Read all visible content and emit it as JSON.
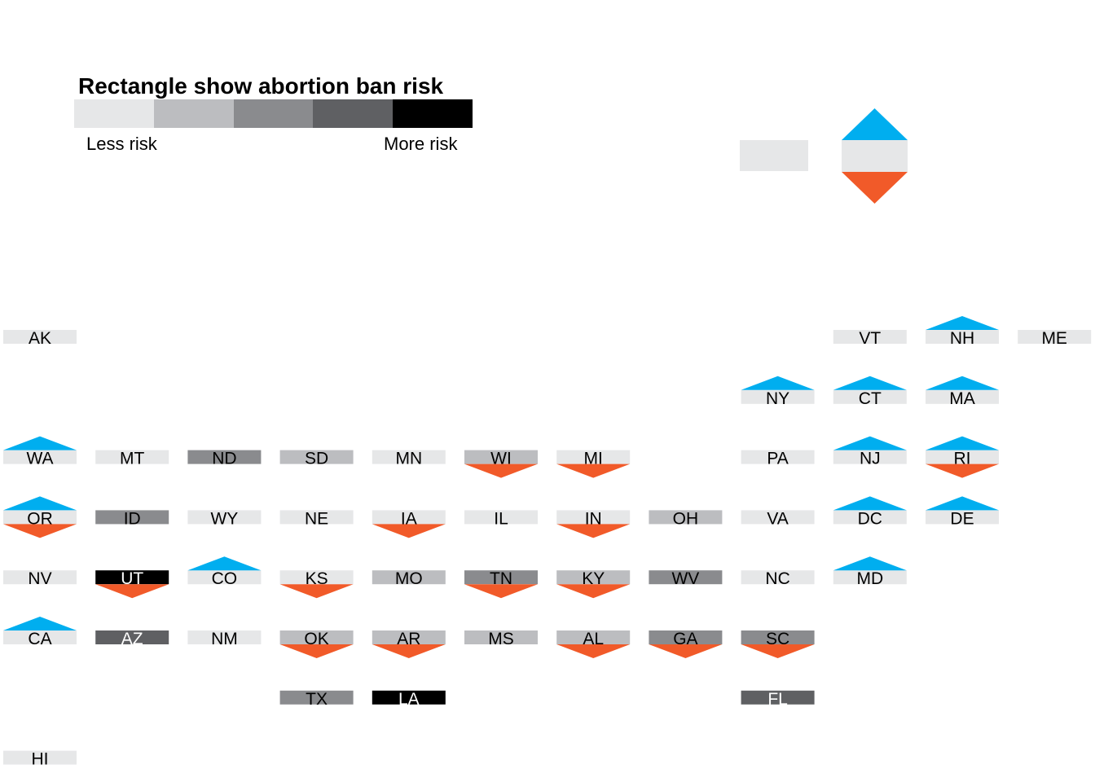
{
  "legend": {
    "title": "Rectangle show abortion ban risk",
    "less_label": "Less risk",
    "more_label": "More risk",
    "risk_colors": [
      "#e6e7e8",
      "#bcbdc0",
      "#8a8b8e",
      "#5f6063",
      "#000000"
    ]
  },
  "colors": {
    "up_triangle": "#00aeef",
    "down_triangle": "#f15a29"
  },
  "chart_data": {
    "type": "tile-map",
    "risk_scale": [
      1,
      2,
      3,
      4,
      5
    ],
    "states": [
      {
        "abbr": "AK",
        "risk": 1,
        "up": false,
        "down": false
      },
      {
        "abbr": "VT",
        "risk": 1,
        "up": false,
        "down": false
      },
      {
        "abbr": "NH",
        "risk": 1,
        "up": true,
        "down": false
      },
      {
        "abbr": "ME",
        "risk": 1,
        "up": false,
        "down": false
      },
      {
        "abbr": "NY",
        "risk": 1,
        "up": true,
        "down": false
      },
      {
        "abbr": "CT",
        "risk": 1,
        "up": true,
        "down": false
      },
      {
        "abbr": "MA",
        "risk": 1,
        "up": true,
        "down": false
      },
      {
        "abbr": "WA",
        "risk": 1,
        "up": true,
        "down": false
      },
      {
        "abbr": "MT",
        "risk": 1,
        "up": false,
        "down": false
      },
      {
        "abbr": "ND",
        "risk": 3,
        "up": false,
        "down": false
      },
      {
        "abbr": "SD",
        "risk": 2,
        "up": false,
        "down": false
      },
      {
        "abbr": "MN",
        "risk": 1,
        "up": false,
        "down": false
      },
      {
        "abbr": "WI",
        "risk": 2,
        "up": false,
        "down": true
      },
      {
        "abbr": "MI",
        "risk": 1,
        "up": false,
        "down": true
      },
      {
        "abbr": "PA",
        "risk": 1,
        "up": false,
        "down": false
      },
      {
        "abbr": "NJ",
        "risk": 1,
        "up": true,
        "down": false
      },
      {
        "abbr": "RI",
        "risk": 1,
        "up": true,
        "down": true
      },
      {
        "abbr": "OR",
        "risk": 1,
        "up": true,
        "down": true
      },
      {
        "abbr": "ID",
        "risk": 3,
        "up": false,
        "down": false
      },
      {
        "abbr": "WY",
        "risk": 1,
        "up": false,
        "down": false
      },
      {
        "abbr": "NE",
        "risk": 1,
        "up": false,
        "down": false
      },
      {
        "abbr": "IA",
        "risk": 1,
        "up": false,
        "down": true
      },
      {
        "abbr": "IL",
        "risk": 1,
        "up": false,
        "down": false
      },
      {
        "abbr": "IN",
        "risk": 1,
        "up": false,
        "down": true
      },
      {
        "abbr": "OH",
        "risk": 2,
        "up": false,
        "down": false
      },
      {
        "abbr": "VA",
        "risk": 1,
        "up": false,
        "down": false
      },
      {
        "abbr": "DC",
        "risk": 1,
        "up": true,
        "down": false
      },
      {
        "abbr": "DE",
        "risk": 1,
        "up": true,
        "down": false
      },
      {
        "abbr": "NV",
        "risk": 1,
        "up": false,
        "down": false
      },
      {
        "abbr": "UT",
        "risk": 5,
        "up": false,
        "down": true
      },
      {
        "abbr": "CO",
        "risk": 1,
        "up": true,
        "down": false
      },
      {
        "abbr": "KS",
        "risk": 1,
        "up": false,
        "down": true
      },
      {
        "abbr": "MO",
        "risk": 2,
        "up": false,
        "down": false
      },
      {
        "abbr": "TN",
        "risk": 3,
        "up": false,
        "down": true
      },
      {
        "abbr": "KY",
        "risk": 2,
        "up": false,
        "down": true
      },
      {
        "abbr": "WV",
        "risk": 3,
        "up": false,
        "down": false
      },
      {
        "abbr": "NC",
        "risk": 1,
        "up": false,
        "down": false
      },
      {
        "abbr": "MD",
        "risk": 1,
        "up": true,
        "down": false
      },
      {
        "abbr": "CA",
        "risk": 1,
        "up": true,
        "down": false
      },
      {
        "abbr": "AZ",
        "risk": 4,
        "up": false,
        "down": false
      },
      {
        "abbr": "NM",
        "risk": 1,
        "up": false,
        "down": false
      },
      {
        "abbr": "OK",
        "risk": 2,
        "up": false,
        "down": true
      },
      {
        "abbr": "AR",
        "risk": 2,
        "up": false,
        "down": true
      },
      {
        "abbr": "MS",
        "risk": 2,
        "up": false,
        "down": false
      },
      {
        "abbr": "AL",
        "risk": 2,
        "up": false,
        "down": true
      },
      {
        "abbr": "GA",
        "risk": 3,
        "up": false,
        "down": true
      },
      {
        "abbr": "SC",
        "risk": 3,
        "up": false,
        "down": true
      },
      {
        "abbr": "TX",
        "risk": 3,
        "up": false,
        "down": false
      },
      {
        "abbr": "LA",
        "risk": 5,
        "up": false,
        "down": false
      },
      {
        "abbr": "FL",
        "risk": 4,
        "up": false,
        "down": false
      },
      {
        "abbr": "HI",
        "risk": 1,
        "up": false,
        "down": false
      }
    ]
  }
}
